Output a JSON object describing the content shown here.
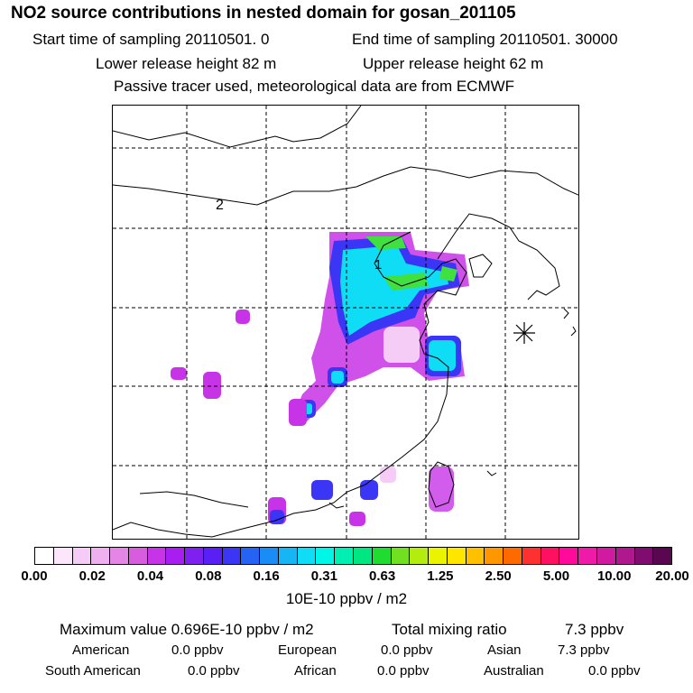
{
  "header": {
    "title": "NO2 source contributions in nested domain for gosan_201105",
    "line1_start": "Start time of sampling 20110501.     0",
    "line1_end": "End time of sampling 20110501. 30000",
    "line2_lower": "Lower release height   82 m",
    "line2_upper": "Upper release height   62 m",
    "line3": "Passive tracer used, meteorological data are from ECMWF"
  },
  "map": {
    "labels": {
      "label_2": "2",
      "label_1": "1"
    },
    "receptor_marker": "asterisk-icon"
  },
  "colorbar": {
    "colors": [
      "#ffffff",
      "#fbe6fb",
      "#f5ccf5",
      "#eeb0ee",
      "#e585e5",
      "#d85cde",
      "#c733e6",
      "#a81ef0",
      "#7f1ff0",
      "#5a1ff5",
      "#3b35f6",
      "#2563f5",
      "#1a8cf6",
      "#16b6f4",
      "#0fdcf5",
      "#00f6e6",
      "#00f0b4",
      "#00e680",
      "#20dc30",
      "#70e020",
      "#b4ec10",
      "#eaf400",
      "#ffe600",
      "#ffc000",
      "#ff9800",
      "#ff6a00",
      "#ff3030",
      "#ff1060",
      "#ff0a9a",
      "#f01aa8",
      "#d01aa0",
      "#b01890",
      "#800c70",
      "#5a0650"
    ],
    "ticks": [
      "0.00",
      "0.02",
      "0.04",
      "0.08",
      "0.16",
      "0.31",
      "0.63",
      "1.25",
      "2.50",
      "5.00",
      "10.00",
      "20.00"
    ],
    "unit": "10E-10 ppbv / m2"
  },
  "footer": {
    "max_label": "Maximum value  0.696E-10 ppbv / m2",
    "total_label": "Total mixing ratio",
    "total_value": "7.3 ppbv",
    "american": "American",
    "american_val": "0.0 ppbv",
    "european": "European",
    "european_val": "0.0 ppbv",
    "asian": "Asian",
    "asian_val": "7.3 ppbv",
    "south_american": "South American",
    "south_american_val": "0.0 ppbv",
    "african": "African",
    "african_val": "0.0 ppbv",
    "australian": "Australian",
    "australian_val": "0.0 ppbv"
  }
}
